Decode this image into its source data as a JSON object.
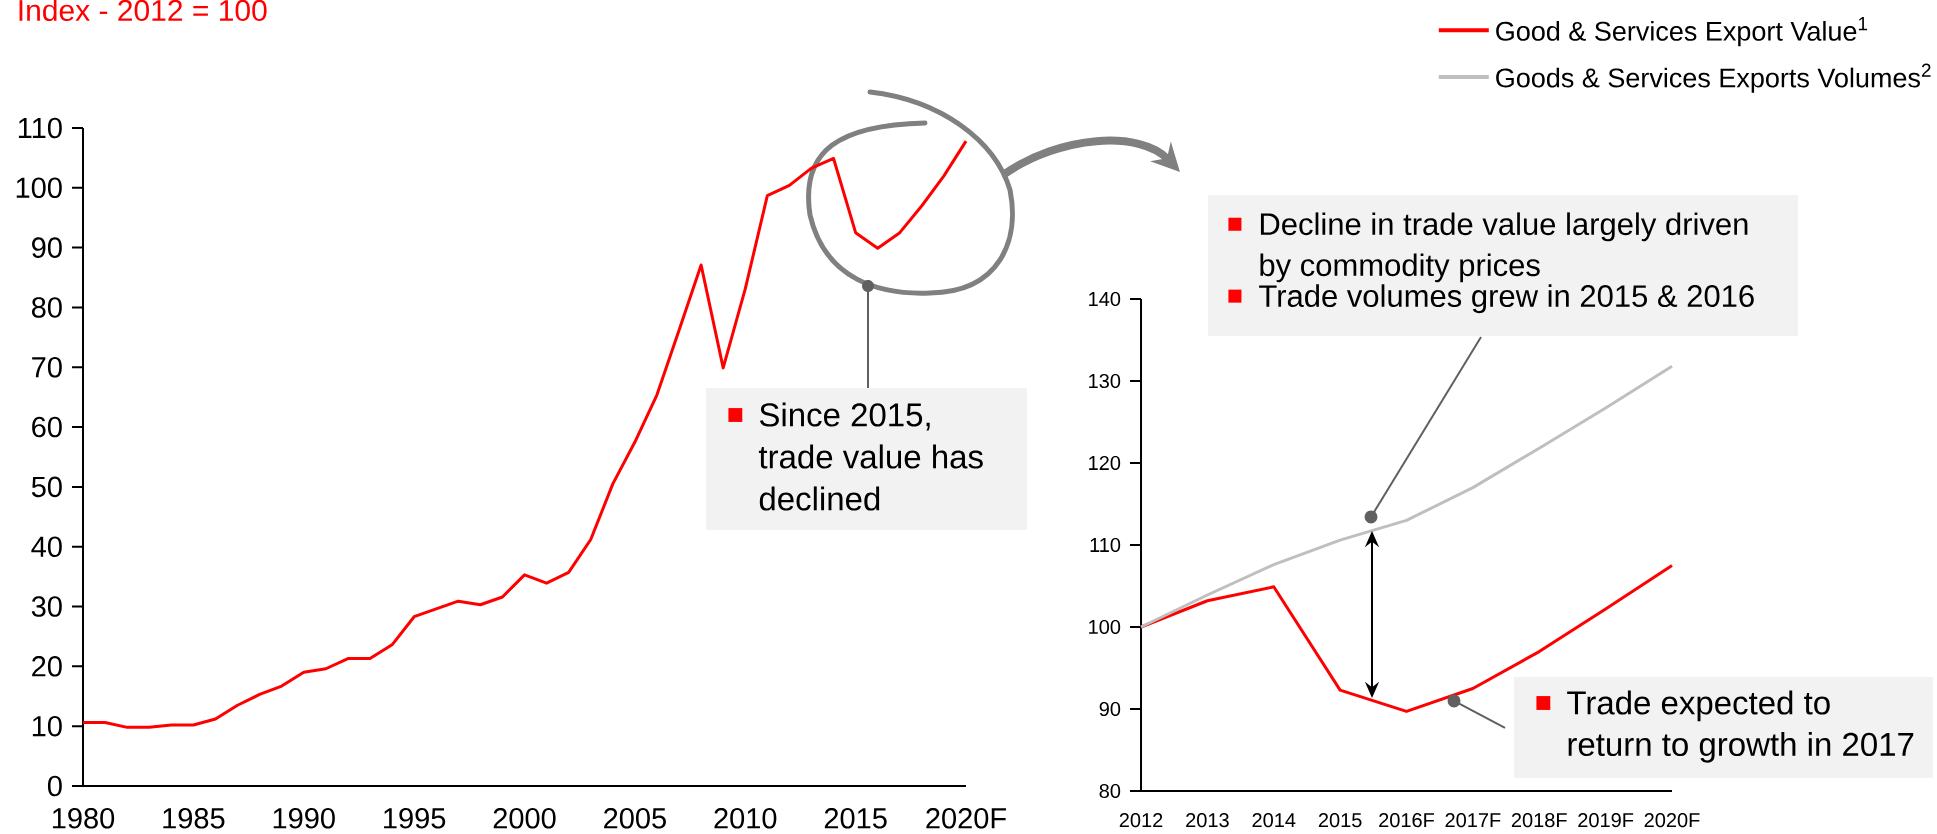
{
  "chart_data": [
    {
      "type": "line",
      "title": "Index - 2012 = 100",
      "color": "#ff0000",
      "x": [
        1980,
        1981,
        1982,
        1983,
        1984,
        1985,
        1986,
        1987,
        1988,
        1989,
        1990,
        1991,
        1992,
        1993,
        1994,
        1995,
        1996,
        1997,
        1998,
        1999,
        2000,
        2001,
        2002,
        2003,
        2004,
        2005,
        2006,
        2007,
        2008,
        2009,
        2010,
        2011,
        2012,
        2013,
        2014,
        2015,
        2016,
        2017,
        2018,
        2019,
        2020
      ],
      "values": [
        10.6,
        10.6,
        9.8,
        9.8,
        10.2,
        10.2,
        11.2,
        13.5,
        15.3,
        16.7,
        19.0,
        19.6,
        21.3,
        21.3,
        23.6,
        28.3,
        29.6,
        30.9,
        30.3,
        31.6,
        35.3,
        33.9,
        35.7,
        41.2,
        50.5,
        57.5,
        65.4,
        76.2,
        87.1,
        69.9,
        83.1,
        98.7,
        100.4,
        103.3,
        104.9,
        92.5,
        89.9,
        92.5,
        97.0,
        102.0,
        107.8
      ],
      "xlim": [
        1980,
        2020
      ],
      "ylim": [
        0,
        110
      ],
      "xticks": [
        1980,
        1985,
        1990,
        1995,
        2000,
        2005,
        2010,
        2015,
        {
          "value": 2020,
          "label": "2020F"
        }
      ],
      "yticks": [
        0,
        10,
        20,
        30,
        40,
        50,
        60,
        70,
        80,
        90,
        100,
        110
      ],
      "annotations": [
        "Since 2015, trade value has declined"
      ]
    },
    {
      "type": "line",
      "categories": [
        "2012",
        "2013",
        "2014",
        "2015",
        "2016F",
        "2017F",
        "2018F",
        "2019F",
        "2020F"
      ],
      "series": [
        {
          "name": "Good & Services Export Value$^{1}$",
          "color": "#ff0000",
          "values": [
            100.0,
            103.2,
            104.9,
            92.3,
            89.7,
            92.5,
            97.0,
            102.2,
            107.5
          ]
        },
        {
          "name": "Goods & Services Exports Volumes$^{2}$",
          "color": "#bfbfbf",
          "values": [
            100.0,
            103.9,
            107.6,
            110.6,
            113.0,
            117.0,
            121.8,
            126.7,
            131.8
          ]
        }
      ],
      "ylim": [
        80,
        140
      ],
      "yticks": [
        80,
        90,
        100,
        110,
        120,
        130,
        140
      ],
      "legend": "top right",
      "annotations": [
        "Decline in trade value largely driven by commodity prices",
        "Trade volumes grew in 2015 & 2016",
        "Trade expected to return to growth in 2017"
      ]
    }
  ]
}
